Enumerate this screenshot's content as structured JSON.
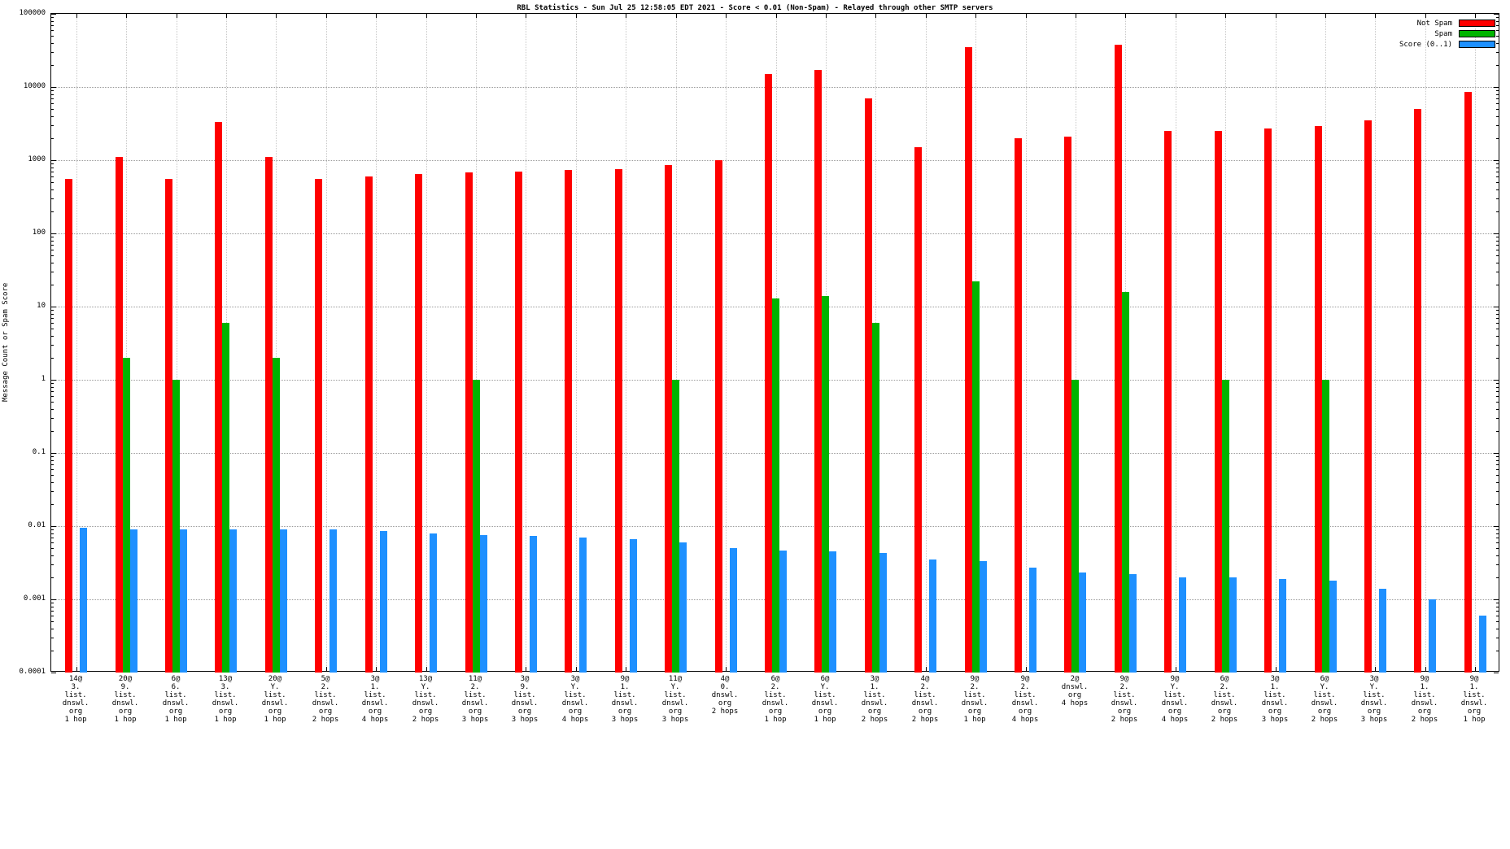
{
  "chart_data": {
    "type": "bar",
    "title": "RBL Statistics - Sun Jul 25 12:58:05 EDT 2021 - Score < 0.01 (Non-Spam) - Relayed through other SMTP servers",
    "ylabel": "Message Count or Spam Score",
    "yscale": "log",
    "ylim": [
      0.0001,
      100000
    ],
    "grid": true,
    "legend_position": "top-right",
    "ytick_labels": [
      "100000",
      "10000",
      "1000",
      "100",
      "10",
      "1",
      "0.1",
      "0.01",
      "0.001",
      "0.0001"
    ],
    "categories": [
      [
        "14@",
        "3.",
        "list.",
        "dnswl.",
        "org",
        "1 hop"
      ],
      [
        "20@",
        "9.",
        "list.",
        "dnswl.",
        "org",
        "1 hop"
      ],
      [
        "6@",
        "6.",
        "list.",
        "dnswl.",
        "org",
        "1 hop"
      ],
      [
        "13@",
        "3.",
        "list.",
        "dnswl.",
        "org",
        "1 hop"
      ],
      [
        "20@",
        "Y.",
        "list.",
        "dnswl.",
        "org",
        "1 hop"
      ],
      [
        "5@",
        "2.",
        "list.",
        "dnswl.",
        "org",
        "2 hops"
      ],
      [
        "3@",
        "1.",
        "list.",
        "dnswl.",
        "org",
        "4 hops"
      ],
      [
        "13@",
        "Y.",
        "list.",
        "dnswl.",
        "org",
        "2 hops"
      ],
      [
        "11@",
        "2.",
        "list.",
        "dnswl.",
        "org",
        "3 hops"
      ],
      [
        "3@",
        "9.",
        "list.",
        "dnswl.",
        "org",
        "3 hops"
      ],
      [
        "3@",
        "Y.",
        "list.",
        "dnswl.",
        "org",
        "4 hops"
      ],
      [
        "9@",
        "1.",
        "list.",
        "dnswl.",
        "org",
        "3 hops"
      ],
      [
        "11@",
        "Y.",
        "list.",
        "dnswl.",
        "org",
        "3 hops"
      ],
      [
        "4@",
        "0.",
        "dnswl.",
        "org",
        "2 hops"
      ],
      [
        "6@",
        "2.",
        "list.",
        "dnswl.",
        "org",
        "1 hop"
      ],
      [
        "6@",
        "Y.",
        "list.",
        "dnswl.",
        "org",
        "1 hop"
      ],
      [
        "3@",
        "1.",
        "list.",
        "dnswl.",
        "org",
        "2 hops"
      ],
      [
        "4@",
        "2.",
        "list.",
        "dnswl.",
        "org",
        "2 hops"
      ],
      [
        "9@",
        "2.",
        "list.",
        "dnswl.",
        "org",
        "1 hop"
      ],
      [
        "9@",
        "2.",
        "list.",
        "dnswl.",
        "org",
        "4 hops"
      ],
      [
        "2@",
        "dnswl.",
        "org",
        "4 hops"
      ],
      [
        "9@",
        "2.",
        "list.",
        "dnswl.",
        "org",
        "2 hops"
      ],
      [
        "9@",
        "Y.",
        "list.",
        "dnswl.",
        "org",
        "4 hops"
      ],
      [
        "6@",
        "2.",
        "list.",
        "dnswl.",
        "org",
        "2 hops"
      ],
      [
        "3@",
        "1.",
        "list.",
        "dnswl.",
        "org",
        "3 hops"
      ],
      [
        "6@",
        "Y.",
        "list.",
        "dnswl.",
        "org",
        "2 hops"
      ],
      [
        "3@",
        "Y.",
        "list.",
        "dnswl.",
        "org",
        "3 hops"
      ],
      [
        "9@",
        "1.",
        "list.",
        "dnswl.",
        "org",
        "2 hops"
      ],
      [
        "9@",
        "1.",
        "list.",
        "dnswl.",
        "org",
        "1 hop"
      ]
    ],
    "series": [
      {
        "name": "Not Spam",
        "color": "#ff0000",
        "values": [
          550,
          1100,
          550,
          3300,
          1100,
          550,
          600,
          650,
          680,
          700,
          730,
          760,
          850,
          1000,
          15000,
          17000,
          7000,
          1500,
          35000,
          2000,
          2100,
          38000,
          2500,
          2500,
          2700,
          2900,
          3500,
          5000,
          8500
        ]
      },
      {
        "name": "Spam",
        "color": "#00b400",
        "values": [
          null,
          2,
          1,
          6,
          2,
          null,
          null,
          null,
          1,
          null,
          null,
          null,
          1,
          null,
          13,
          14,
          6,
          null,
          22,
          null,
          1,
          16,
          null,
          1,
          null,
          1,
          null,
          null,
          null
        ]
      },
      {
        "name": "Score (0..1)",
        "color": "#1e90ff",
        "values": [
          0.0095,
          0.009,
          0.009,
          0.009,
          0.009,
          0.009,
          0.0085,
          0.008,
          0.0075,
          0.0073,
          0.007,
          0.0067,
          0.006,
          0.005,
          0.0047,
          0.0045,
          0.0043,
          0.0035,
          0.0033,
          0.0027,
          0.0023,
          0.0022,
          0.002,
          0.002,
          0.0019,
          0.0018,
          0.0014,
          0.001,
          0.0006
        ]
      }
    ],
    "legend": [
      {
        "label": "Not Spam",
        "color": "#ff0000"
      },
      {
        "label": "Spam",
        "color": "#00b400"
      },
      {
        "label": "Score (0..1)",
        "color": "#1e90ff"
      }
    ]
  }
}
